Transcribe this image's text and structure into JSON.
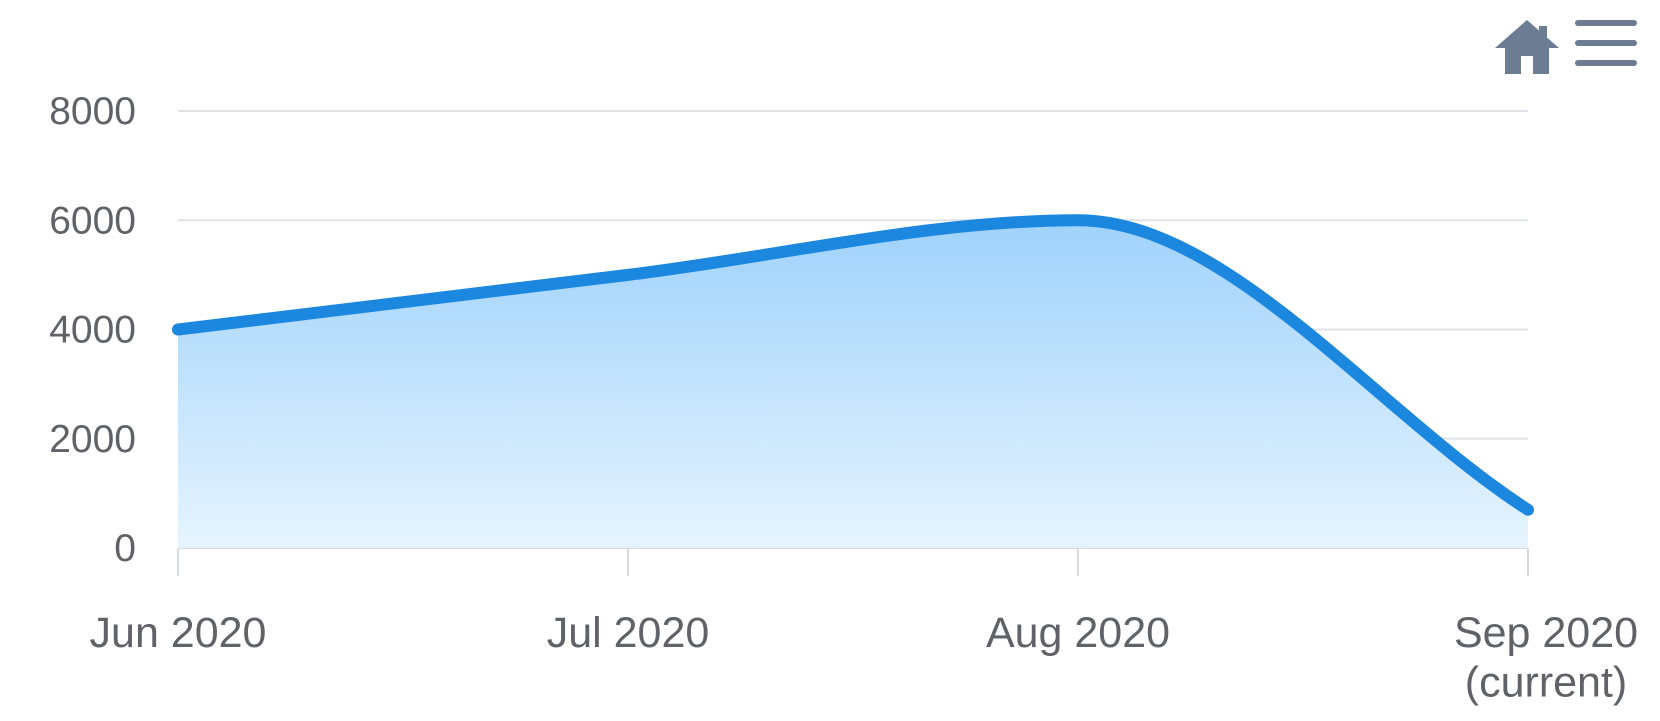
{
  "toolbar": {
    "home_icon": "home-icon",
    "menu_icon": "menu-icon",
    "icon_color": "#6b7c93"
  },
  "chart_data": {
    "type": "area",
    "title": "",
    "xlabel": "",
    "ylabel": "",
    "categories": [
      "Jun 2020",
      "Jul 2020",
      "Aug 2020",
      "Sep 2020\n(current)"
    ],
    "values": [
      4000,
      5000,
      6000,
      700
    ],
    "ylim": [
      0,
      8000
    ],
    "y_ticks": [
      0,
      2000,
      4000,
      6000,
      8000
    ],
    "grid": true,
    "line_color": "#1c87df",
    "fill_top_color": "#9fd2fb",
    "fill_bottom_color": "#e6f4ff"
  }
}
